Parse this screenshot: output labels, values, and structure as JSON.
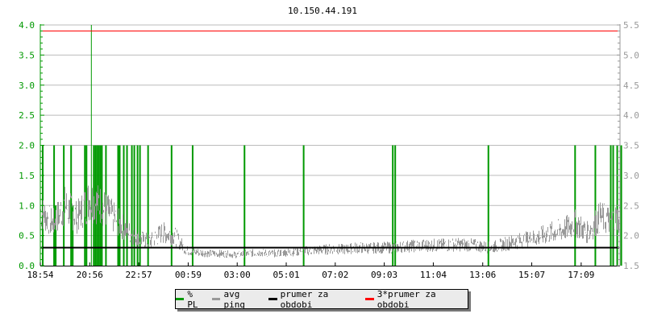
{
  "chart_data": {
    "type": "line",
    "title": "10.150.44.191",
    "start_time": "18:54",
    "left_axis": {
      "ylim": [
        0,
        4.0
      ],
      "ticks": [
        "0.0",
        "0.5",
        "1.0",
        "1.5",
        "2.0",
        "2.5",
        "3.0",
        "3.5",
        "4.0"
      ],
      "color": "#009900"
    },
    "right_axis": {
      "ylim": [
        1.5,
        5.5
      ],
      "ticks": [
        "1.5",
        "2.0",
        "2.5",
        "3.0",
        "3.5",
        "4.0",
        "4.5",
        "5.0",
        "5.5"
      ],
      "color": "#999999"
    },
    "x_ticks": [
      "18:54",
      "20:56",
      "22:57",
      "00:59",
      "03:00",
      "05:01",
      "07:02",
      "09:03",
      "11:04",
      "13:06",
      "15:07",
      "17:09"
    ],
    "grid": true,
    "legend_position": "bottom",
    "series": [
      {
        "name": "% PL",
        "color": "#009900",
        "axis": "left",
        "points": [
          [
            "19:00",
            2.0
          ],
          [
            "19:28",
            2.0
          ],
          [
            "19:32",
            1.0
          ],
          [
            "19:52",
            2.0
          ],
          [
            "20:10",
            2.0
          ],
          [
            "20:14",
            1.0
          ],
          [
            "20:44",
            2.0
          ],
          [
            "20:48",
            2.0
          ],
          [
            "21:00",
            4.0
          ],
          [
            "21:06",
            2.0
          ],
          [
            "21:10",
            2.0
          ],
          [
            "21:14",
            2.0
          ],
          [
            "21:18",
            2.0
          ],
          [
            "21:22",
            2.0
          ],
          [
            "21:26",
            2.0
          ],
          [
            "21:36",
            2.0
          ],
          [
            "22:06",
            2.0
          ],
          [
            "22:10",
            2.0
          ],
          [
            "22:20",
            2.0
          ],
          [
            "22:28",
            2.0
          ],
          [
            "22:40",
            2.0
          ],
          [
            "22:46",
            2.0
          ],
          [
            "22:54",
            2.0
          ],
          [
            "23:00",
            2.0
          ],
          [
            "23:20",
            2.0
          ],
          [
            "00:18",
            2.0
          ],
          [
            "01:10",
            2.0
          ],
          [
            "03:18",
            2.0
          ],
          [
            "05:44",
            2.0
          ],
          [
            "09:24",
            2.0
          ],
          [
            "09:30",
            2.0
          ],
          [
            "13:20",
            2.0
          ],
          [
            "16:54",
            2.0
          ],
          [
            "17:44",
            2.0
          ],
          [
            "18:22",
            2.0
          ],
          [
            "18:28",
            2.0
          ],
          [
            "18:38",
            2.0
          ],
          [
            "18:48",
            2.0
          ]
        ]
      },
      {
        "name": "avg ping",
        "color": "#999999",
        "axis": "right",
        "points": [
          [
            "18:54",
            2.4
          ],
          [
            "19:24",
            2.2
          ],
          [
            "19:54",
            2.5
          ],
          [
            "20:24",
            2.3
          ],
          [
            "20:54",
            2.6
          ],
          [
            "21:24",
            2.5
          ],
          [
            "21:54",
            2.3
          ],
          [
            "22:24",
            2.1
          ],
          [
            "22:54",
            1.95
          ],
          [
            "23:24",
            1.9
          ],
          [
            "23:54",
            2.05
          ],
          [
            "00:24",
            2.0
          ],
          [
            "00:54",
            1.75
          ],
          [
            "01:24",
            1.72
          ],
          [
            "01:54",
            1.7
          ],
          [
            "02:24",
            1.7
          ],
          [
            "02:54",
            1.68
          ],
          [
            "03:24",
            1.7
          ],
          [
            "03:54",
            1.72
          ],
          [
            "04:24",
            1.7
          ],
          [
            "04:54",
            1.72
          ],
          [
            "05:24",
            1.73
          ],
          [
            "05:54",
            1.75
          ],
          [
            "06:24",
            1.76
          ],
          [
            "06:54",
            1.78
          ],
          [
            "07:24",
            1.77
          ],
          [
            "07:54",
            1.8
          ],
          [
            "08:24",
            1.79
          ],
          [
            "08:54",
            1.8
          ],
          [
            "09:24",
            1.8
          ],
          [
            "09:54",
            1.82
          ],
          [
            "10:24",
            1.83
          ],
          [
            "10:54",
            1.84
          ],
          [
            "11:24",
            1.84
          ],
          [
            "11:54",
            1.85
          ],
          [
            "12:24",
            1.85
          ],
          [
            "12:54",
            1.83
          ],
          [
            "13:24",
            1.8
          ],
          [
            "13:54",
            1.85
          ],
          [
            "14:24",
            1.9
          ],
          [
            "14:54",
            1.93
          ],
          [
            "15:24",
            1.98
          ],
          [
            "15:54",
            2.05
          ],
          [
            "16:24",
            2.1
          ],
          [
            "16:54",
            2.2
          ],
          [
            "17:24",
            2.05
          ],
          [
            "17:54",
            2.3
          ],
          [
            "18:24",
            2.25
          ],
          [
            "18:44",
            2.3
          ]
        ]
      },
      {
        "name": "prumer za obdobi",
        "color": "#000000",
        "axis": "right",
        "value": 1.8
      },
      {
        "name": "3*prumer za obdobi",
        "color": "#ff0000",
        "axis": "right",
        "value": 5.4
      }
    ]
  }
}
